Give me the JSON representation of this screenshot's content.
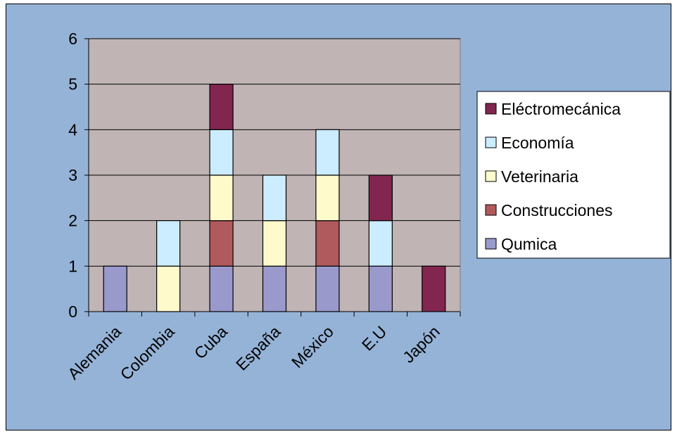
{
  "chart_data": {
    "type": "bar",
    "stacked": true,
    "title": "",
    "xlabel": "",
    "ylabel": "",
    "categories": [
      "Alemania",
      "Colombia",
      "Cuba",
      "España",
      "México",
      "E.U",
      "Japón"
    ],
    "ylim": [
      0,
      6
    ],
    "yticks": [
      0,
      1,
      2,
      3,
      4,
      5,
      6
    ],
    "grid": true,
    "legend_position": "right",
    "series": [
      {
        "name": "Qumica",
        "color": "#9999cc",
        "values": [
          1,
          0,
          1,
          1,
          1,
          1,
          0
        ]
      },
      {
        "name": "Construcciones",
        "color": "#b05a5e",
        "values": [
          0,
          0,
          1,
          0,
          1,
          0,
          0
        ]
      },
      {
        "name": "Veterinaria",
        "color": "#fffacc",
        "values": [
          0,
          1,
          1,
          1,
          1,
          0,
          0
        ]
      },
      {
        "name": "Economía",
        "color": "#ccecff",
        "values": [
          0,
          1,
          1,
          1,
          1,
          1,
          0
        ]
      },
      {
        "name": "Eléctromecánica",
        "color": "#82264f",
        "values": [
          0,
          0,
          1,
          0,
          0,
          1,
          1
        ]
      }
    ],
    "plot_background": "#c0b4b4",
    "chart_background": "#95b3d7"
  }
}
